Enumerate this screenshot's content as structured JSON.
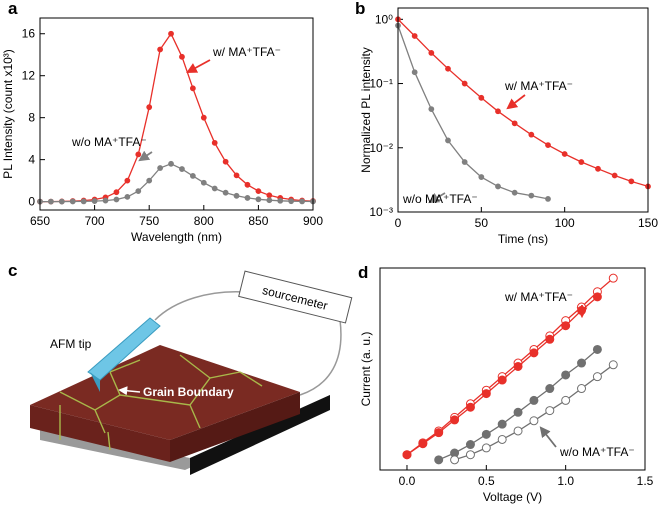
{
  "chart_data": [
    {
      "type": "line",
      "label": "a",
      "xlabel": "Wavelength (nm)",
      "ylabel": "PL Intensity (count x10³)",
      "x": [
        650,
        660,
        670,
        680,
        690,
        700,
        710,
        720,
        730,
        740,
        750,
        760,
        770,
        780,
        790,
        800,
        810,
        820,
        830,
        840,
        850,
        860,
        870,
        880,
        890,
        900
      ],
      "series": [
        {
          "name": "w/ MA⁺TFA⁻",
          "color": "#e8302a",
          "values": [
            0,
            0,
            0.02,
            0.05,
            0.1,
            0.2,
            0.4,
            0.9,
            2.0,
            4.5,
            9.0,
            14.5,
            16.0,
            13.8,
            10.8,
            8.0,
            5.6,
            3.8,
            2.5,
            1.6,
            1.0,
            0.6,
            0.35,
            0.2,
            0.1,
            0.05
          ]
        },
        {
          "name": "w/o MA⁺TFA⁻",
          "color": "#808080",
          "values": [
            0,
            0,
            0,
            0.01,
            0.02,
            0.05,
            0.1,
            0.2,
            0.45,
            1.0,
            2.0,
            3.2,
            3.6,
            3.1,
            2.45,
            1.8,
            1.25,
            0.85,
            0.55,
            0.35,
            0.22,
            0.13,
            0.08,
            0.04,
            0.02,
            0.01
          ]
        }
      ],
      "xlim": [
        650,
        900
      ],
      "xticks": [
        650,
        700,
        750,
        800,
        850,
        900
      ],
      "ylim": [
        -0.8,
        17.5
      ],
      "yticks": [
        0,
        4,
        8,
        12,
        16
      ]
    },
    {
      "type": "line",
      "label": "b",
      "xlabel": "Time (ns)",
      "ylabel": "Normalized PL intensity",
      "log_y": true,
      "x": [
        0,
        10,
        20,
        30,
        40,
        50,
        60,
        70,
        80,
        90,
        100,
        110,
        120,
        130,
        140,
        150
      ],
      "series": [
        {
          "name": "w/ MA⁺TFA⁻",
          "color": "#e8302a",
          "values": [
            1.0,
            0.55,
            0.3,
            0.17,
            0.1,
            0.06,
            0.037,
            0.024,
            0.016,
            0.011,
            0.008,
            0.006,
            0.0047,
            0.0037,
            0.003,
            0.0025
          ]
        },
        {
          "name": "w/o MA⁺TFA⁻",
          "color": "#808080",
          "values": [
            0.8,
            0.15,
            0.04,
            0.013,
            0.006,
            0.0035,
            0.0025,
            0.002,
            0.0018,
            0.0016,
            null,
            null,
            null,
            null,
            null,
            null
          ]
        }
      ],
      "xlim": [
        0,
        150
      ],
      "xticks": [
        0,
        50,
        100,
        150
      ],
      "ylim": [
        0.001,
        1.5
      ],
      "yticks": [
        {
          "value": 0.001,
          "label": "10⁻³"
        },
        {
          "value": 0.01,
          "label": "10⁻²"
        },
        {
          "value": 0.1,
          "label": "10⁻¹"
        },
        {
          "value": 1,
          "label": "10⁰"
        }
      ]
    },
    {
      "type": "line",
      "label": "d",
      "xlabel": "Voltage (V)",
      "ylabel": "Current (a. u.)",
      "x": [
        0,
        0.1,
        0.2,
        0.3,
        0.4,
        0.5,
        0.6,
        0.7,
        0.8,
        0.9,
        1.0,
        1.1,
        1.2,
        1.3
      ],
      "series": [
        {
          "name": "w/ MA⁺TFA⁻",
          "color": "#e8302a",
          "filled": false,
          "values": [
            0.3,
            1.0,
            1.7,
            2.5,
            3.3,
            4.1,
            4.9,
            5.7,
            6.5,
            7.3,
            8.2,
            9.0,
            9.9,
            10.7
          ]
        },
        {
          "name": "w/ MA⁺TFA⁻",
          "color": "#e8302a",
          "filled": true,
          "values": [
            0.3,
            0.95,
            1.6,
            2.35,
            3.1,
            3.9,
            4.7,
            5.5,
            6.3,
            7.1,
            7.9,
            8.8,
            9.6,
            null
          ]
        },
        {
          "name": "w/o MA⁺TFA⁻",
          "color": "#707070",
          "filled": true,
          "values": [
            null,
            null,
            0,
            0.4,
            0.9,
            1.5,
            2.1,
            2.8,
            3.5,
            4.2,
            5.0,
            5.7,
            6.5,
            null
          ]
        },
        {
          "name": "w/o MA⁺TFA⁻",
          "color": "#707070",
          "filled": false,
          "values": [
            null,
            null,
            null,
            0,
            0.3,
            0.7,
            1.2,
            1.7,
            2.3,
            2.9,
            3.5,
            4.2,
            4.9,
            5.6
          ]
        }
      ],
      "xlim": [
        -0.17,
        1.5
      ],
      "xticks": [
        {
          "value": 0,
          "label": "0.0"
        },
        0.5,
        {
          "value": 1,
          "label": "1.0"
        },
        1.5
      ],
      "ylim": [
        -0.6,
        11.3
      ],
      "yticks": []
    }
  ],
  "diagram": {
    "label": "c",
    "tip": "AFM tip",
    "meter": "sourcemeter",
    "grain": "Grain Boundary"
  }
}
